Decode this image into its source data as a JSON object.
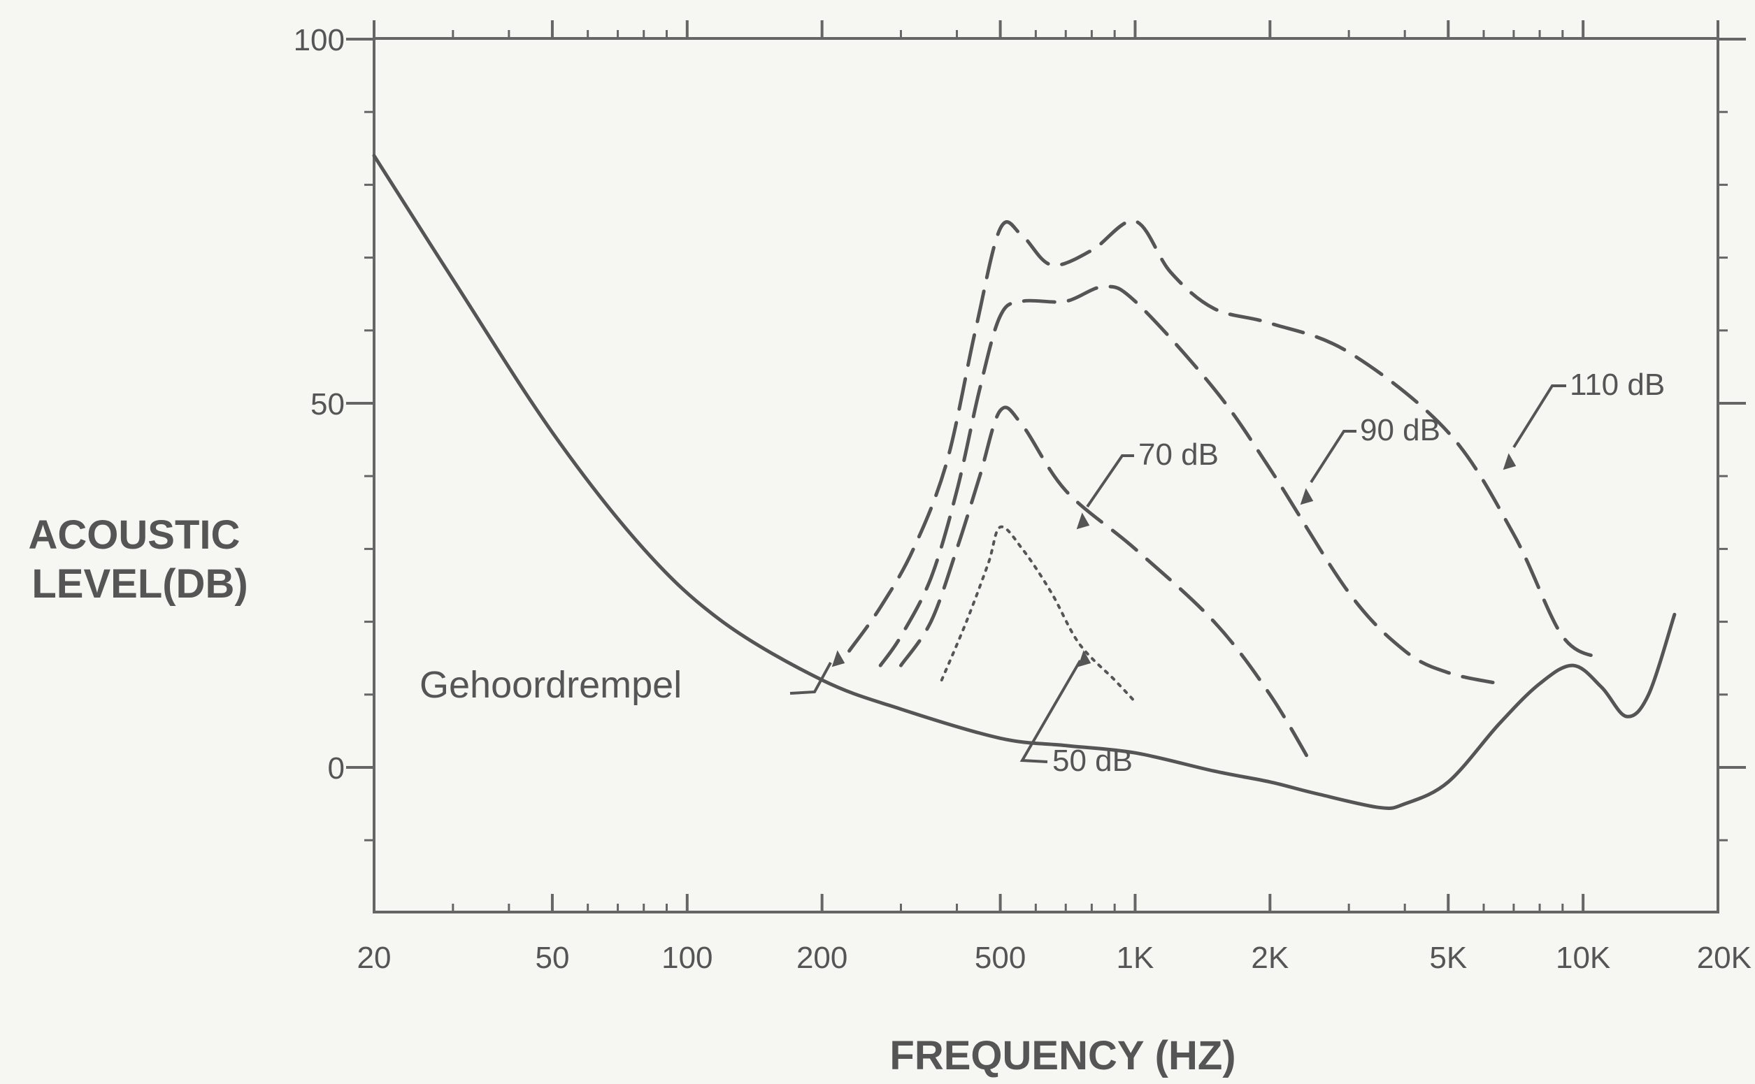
{
  "chart_data": {
    "type": "line",
    "xlabel": "FREQUENCY (HZ)",
    "ylabel_lines": [
      "ACOUSTIC",
      "LEVEL(DB)"
    ],
    "x_scale": "log",
    "xlim": [
      20,
      20000
    ],
    "ylim": [
      -20,
      100
    ],
    "x_ticks": [
      {
        "value": 20,
        "label": "20"
      },
      {
        "value": 50,
        "label": "50"
      },
      {
        "value": 100,
        "label": "100"
      },
      {
        "value": 200,
        "label": "200"
      },
      {
        "value": 500,
        "label": "500"
      },
      {
        "value": 1000,
        "label": "1K"
      },
      {
        "value": 2000,
        "label": "2K"
      },
      {
        "value": 5000,
        "label": "5K"
      },
      {
        "value": 10000,
        "label": "10K"
      },
      {
        "value": 20000,
        "label": "20K"
      }
    ],
    "y_ticks": [
      {
        "value": 0,
        "label": "0"
      },
      {
        "value": 50,
        "label": "50"
      },
      {
        "value": 100,
        "label": "100"
      }
    ],
    "grid": false,
    "colors": {
      "ink": "#555555",
      "background": "#f6f6f3"
    },
    "series": [
      {
        "name": "Gehoordrempel",
        "style": "solid",
        "points": [
          [
            20,
            84
          ],
          [
            30,
            67
          ],
          [
            50,
            46
          ],
          [
            80,
            30
          ],
          [
            120,
            20
          ],
          [
            200,
            12
          ],
          [
            300,
            8
          ],
          [
            500,
            4
          ],
          [
            700,
            3
          ],
          [
            1000,
            2
          ],
          [
            1500,
            -0.5
          ],
          [
            2000,
            -2
          ],
          [
            2500,
            -3.5
          ],
          [
            3500,
            -5.5
          ],
          [
            4000,
            -5
          ],
          [
            5000,
            -2
          ],
          [
            6500,
            6
          ],
          [
            8000,
            11.5
          ],
          [
            9500,
            14
          ],
          [
            11000,
            11
          ],
          [
            12500,
            7
          ],
          [
            14000,
            10
          ],
          [
            16000,
            21
          ]
        ]
      },
      {
        "name": "50 dB",
        "style": "dotted",
        "points": [
          [
            370,
            12
          ],
          [
            420,
            20
          ],
          [
            470,
            28
          ],
          [
            500,
            33
          ],
          [
            560,
            30
          ],
          [
            650,
            24
          ],
          [
            750,
            17
          ],
          [
            900,
            12
          ],
          [
            1000,
            9
          ]
        ]
      },
      {
        "name": "70 dB",
        "style": "dashed",
        "points": [
          [
            300,
            14
          ],
          [
            350,
            20
          ],
          [
            400,
            30
          ],
          [
            450,
            40
          ],
          [
            500,
            49
          ],
          [
            560,
            47
          ],
          [
            700,
            38
          ],
          [
            1000,
            30
          ],
          [
            1500,
            20
          ],
          [
            2000,
            10
          ],
          [
            2500,
            0
          ]
        ]
      },
      {
        "name": "90 dB",
        "style": "dashed",
        "points": [
          [
            270,
            14
          ],
          [
            300,
            18
          ],
          [
            350,
            26
          ],
          [
            400,
            38
          ],
          [
            450,
            52
          ],
          [
            500,
            62
          ],
          [
            560,
            64
          ],
          [
            700,
            64
          ],
          [
            850,
            66
          ],
          [
            1000,
            64
          ],
          [
            1500,
            52
          ],
          [
            2000,
            41
          ],
          [
            3000,
            24
          ],
          [
            4000,
            16
          ],
          [
            5000,
            13
          ],
          [
            6500,
            11.5
          ]
        ]
      },
      {
        "name": "110 dB",
        "style": "dashed",
        "points": [
          [
            230,
            16
          ],
          [
            270,
            22
          ],
          [
            320,
            30
          ],
          [
            380,
            42
          ],
          [
            440,
            60
          ],
          [
            500,
            74
          ],
          [
            560,
            73
          ],
          [
            650,
            69
          ],
          [
            800,
            71
          ],
          [
            1000,
            75
          ],
          [
            1200,
            68
          ],
          [
            1500,
            63
          ],
          [
            2000,
            61
          ],
          [
            3000,
            57
          ],
          [
            5000,
            46
          ],
          [
            7000,
            32
          ],
          [
            9000,
            18
          ],
          [
            11000,
            15
          ]
        ]
      }
    ],
    "annotations": [
      {
        "text": "Gehoordrempel",
        "points_to_series": "Gehoordrempel"
      },
      {
        "text": "50 dB",
        "points_to_series": "50 dB"
      },
      {
        "text": "70 dB",
        "points_to_series": "70 dB"
      },
      {
        "text": "90 dB",
        "points_to_series": "90 dB"
      },
      {
        "text": "110 dB",
        "points_to_series": "110 dB"
      }
    ]
  }
}
